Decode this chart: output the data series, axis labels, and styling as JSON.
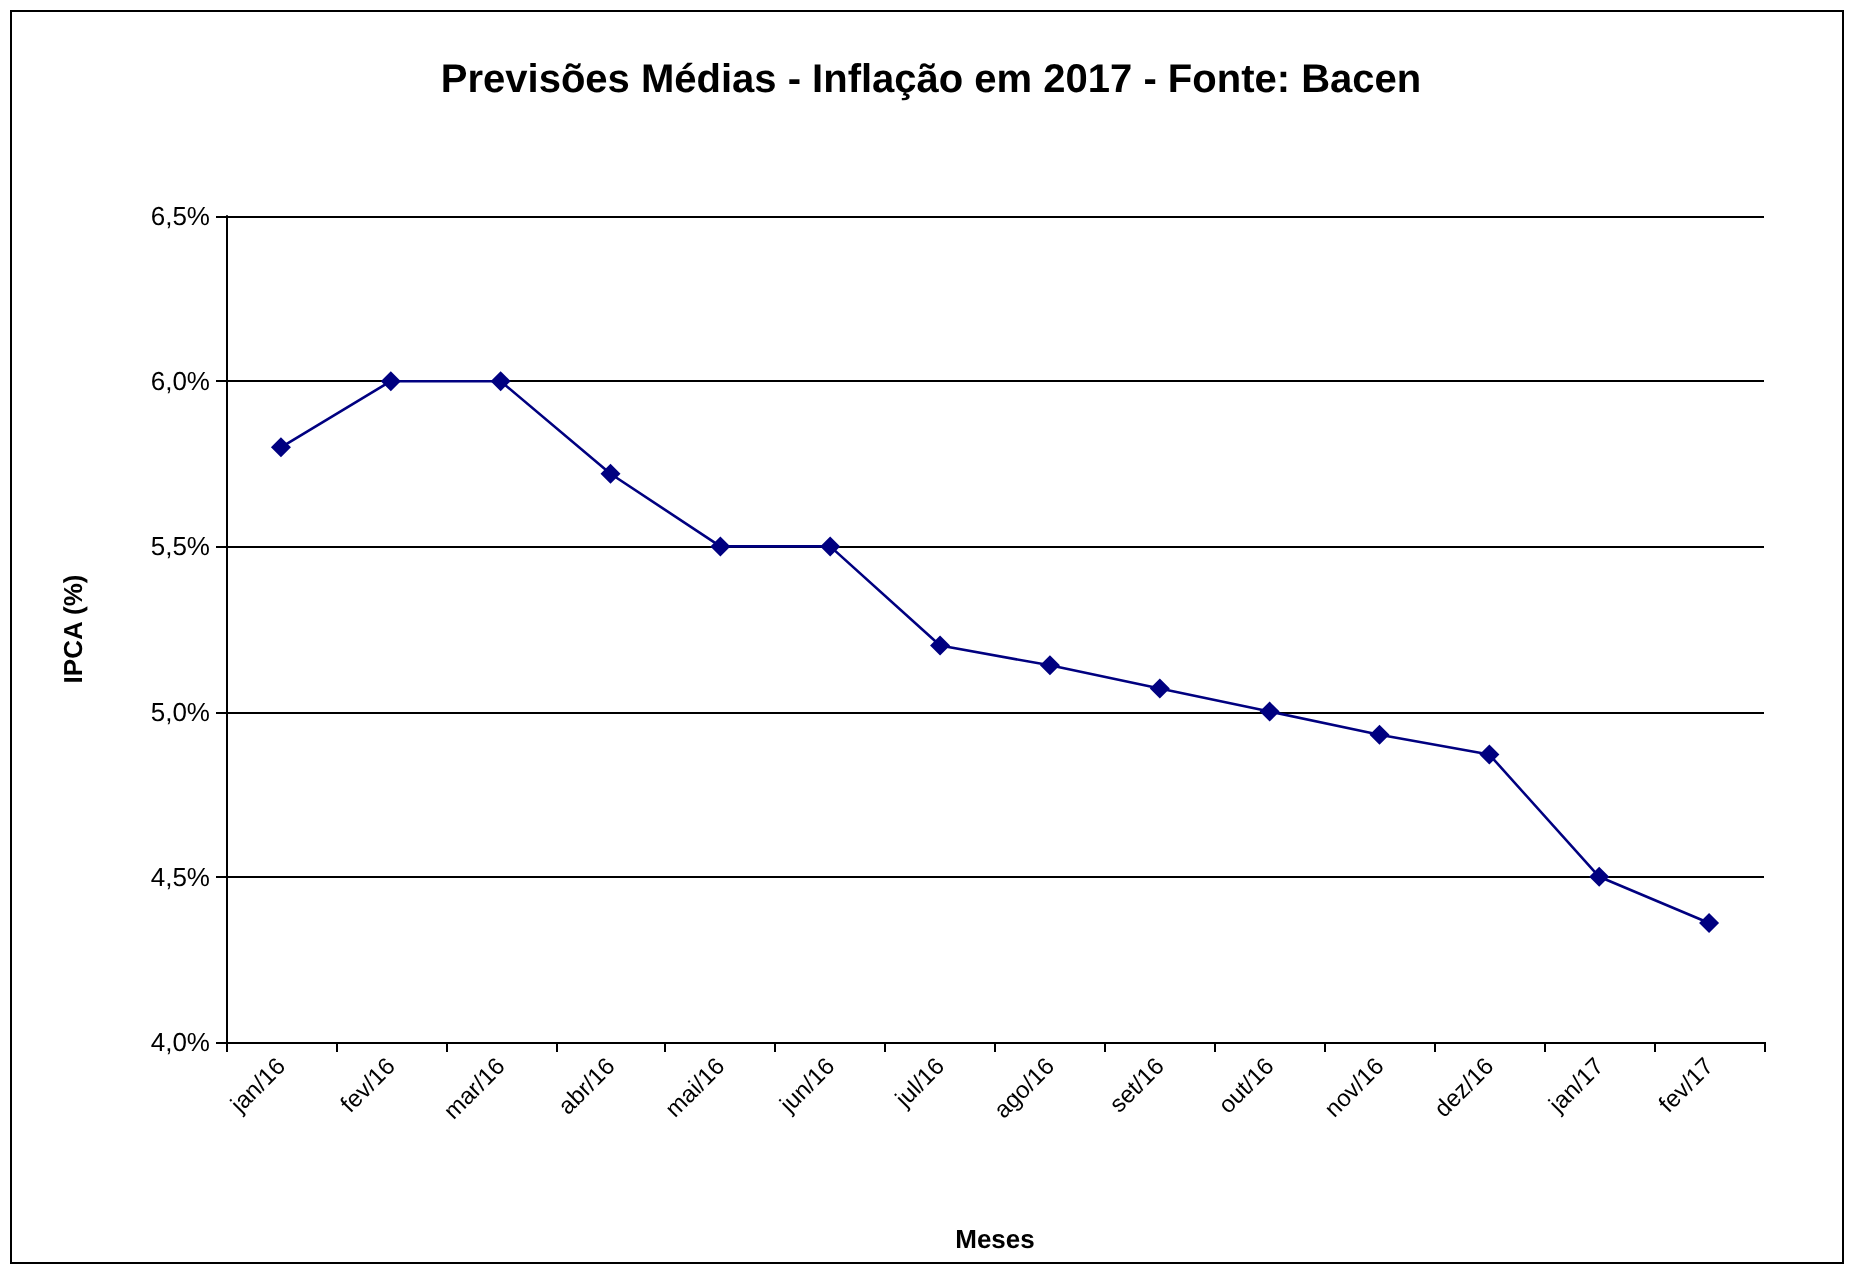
{
  "chart_data": {
    "type": "line",
    "title": "Previsões Médias - Inflação em 2017 - Fonte: Bacen",
    "xlabel": "Meses",
    "ylabel": "IPCA (%)",
    "categories": [
      "jan/16",
      "fev/16",
      "mar/16",
      "abr/16",
      "mai/16",
      "jun/16",
      "jul/16",
      "ago/16",
      "set/16",
      "out/16",
      "nov/16",
      "dez/16",
      "jan/17",
      "fev/17"
    ],
    "series": [
      {
        "color": "#000080",
        "values": [
          5.8,
          6.0,
          6.0,
          5.72,
          5.5,
          5.5,
          5.2,
          5.14,
          5.07,
          5.0,
          4.93,
          4.87,
          4.5,
          4.36
        ]
      }
    ],
    "ylim": [
      4.0,
      6.5
    ],
    "yticks": [
      {
        "value": 4.0,
        "label": "4,0%"
      },
      {
        "value": 4.5,
        "label": "4,5%"
      },
      {
        "value": 5.0,
        "label": "5,0%"
      },
      {
        "value": 5.5,
        "label": "5,5%"
      },
      {
        "value": 6.0,
        "label": "6,0%"
      },
      {
        "value": 6.5,
        "label": "6,5%"
      }
    ],
    "grid": "y",
    "marker": "diamond",
    "line_style": "solid"
  }
}
